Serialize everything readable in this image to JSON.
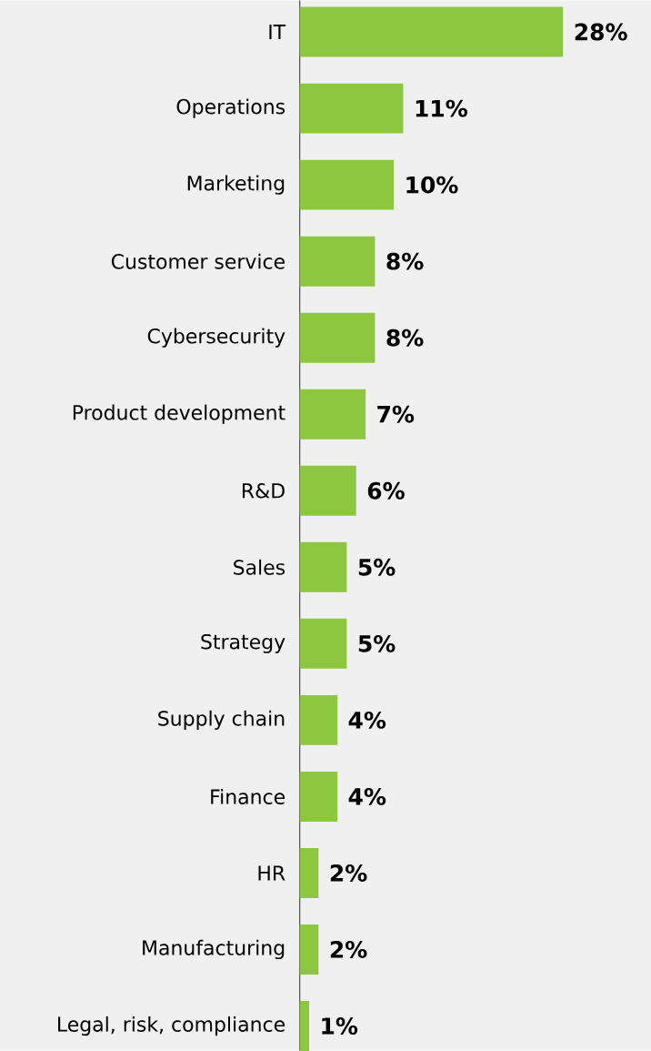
{
  "chart_data": {
    "type": "bar",
    "orientation": "horizontal",
    "color": "#8dc63f",
    "categories": [
      "IT",
      "Operations",
      "Marketing",
      "Customer service",
      "Cybersecurity",
      "Product development",
      "R&D",
      "Sales",
      "Strategy",
      "Supply chain",
      "Finance",
      "HR",
      "Manufacturing",
      "Legal, risk, compliance"
    ],
    "values": [
      28,
      11,
      10,
      8,
      8,
      7,
      6,
      5,
      5,
      4,
      4,
      2,
      2,
      1
    ],
    "value_labels": [
      "28%",
      "11%",
      "10%",
      "8%",
      "8%",
      "7%",
      "6%",
      "5%",
      "5%",
      "4%",
      "4%",
      "2%",
      "2%",
      "1%"
    ]
  }
}
